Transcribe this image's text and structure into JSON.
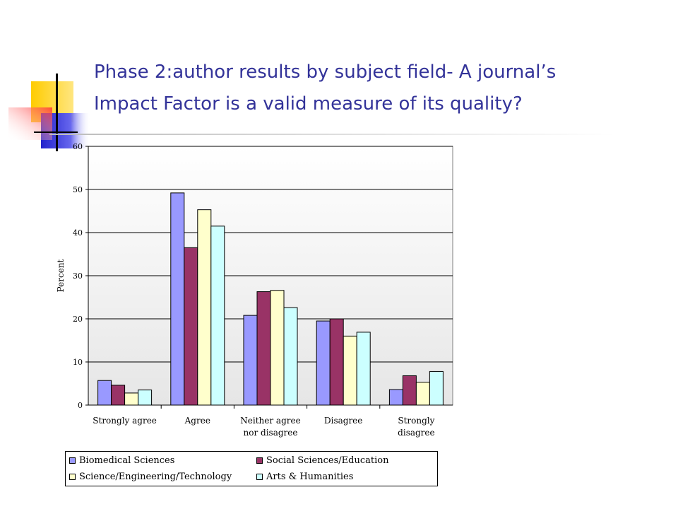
{
  "slide": {
    "title_line1": "Phase 2:author results by subject field- A journal’s",
    "title_line2": "Impact Factor is a valid measure of its quality?"
  },
  "chart_data": {
    "type": "bar",
    "categories": [
      "Strongly agree",
      "Agree",
      "Neither agree\nnor disagree",
      "Disagree",
      "Strongly\ndisagree"
    ],
    "series": [
      {
        "name": "Biomedical Sciences",
        "color": "#9999ff",
        "values": [
          5.7,
          49.2,
          20.8,
          19.5,
          3.6
        ]
      },
      {
        "name": "Social Sciences/Education",
        "color": "#993366",
        "values": [
          4.6,
          36.5,
          26.3,
          20.0,
          6.8
        ]
      },
      {
        "name": "Science/Engineering/Technology",
        "color": "#ffffcc",
        "values": [
          2.8,
          45.3,
          26.6,
          16.0,
          5.3
        ]
      },
      {
        "name": "Arts & Humanities",
        "color": "#ccffff",
        "values": [
          3.5,
          41.5,
          22.6,
          16.9,
          7.8
        ]
      }
    ],
    "ylabel": "Percent",
    "xlabel": "",
    "ylim": [
      0,
      60
    ],
    "yticks": [
      0,
      10,
      20,
      30,
      40,
      50,
      60
    ],
    "grid": true,
    "legend_position": "bottom"
  }
}
